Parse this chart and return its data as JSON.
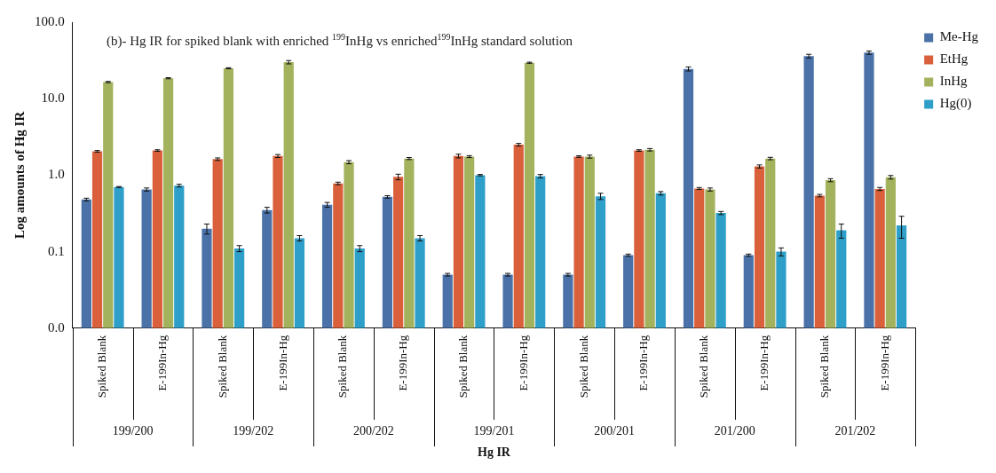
{
  "chart_data": {
    "type": "bar",
    "title": "(b)- Hg IR for spiked blank with enriched $^{199}$InHg vs enriched$^{199}$InHg standard solution",
    "xlabel": "Hg IR",
    "ylabel": "Log amounts of Hg IR",
    "categories": [
      "Spiked Blank",
      "E-199In-Hg",
      "Spiked Blank",
      "E-199In-Hg",
      "Spiked Blank",
      "E-199In-Hg",
      "Spiked Blank",
      "E-199In-Hg",
      "Spiked Blank",
      "E-199In-Hg",
      "Spiked Blank",
      "E-199In-Hg",
      "Spiked Blank",
      "E-199In-Hg"
    ],
    "annotations": [
      "199/200",
      "199/202",
      "200/202",
      "199/201",
      "200/201",
      "201/200",
      "201/202"
    ],
    "series": [
      {
        "name": "Me-Hg",
        "color": "#4a72a8",
        "values": [
          0.48,
          0.65,
          0.2,
          0.35,
          0.41,
          0.52,
          0.05,
          0.05,
          0.05,
          0.09,
          24.5,
          0.09,
          36,
          40
        ],
        "errors": [
          0.02,
          0.03,
          0.03,
          0.03,
          0.03,
          0.02,
          0.002,
          0.002,
          0.002,
          0.003,
          1.5,
          0.003,
          2,
          2
        ]
      },
      {
        "name": "EtHg",
        "color": "#d9603b",
        "values": [
          2.05,
          2.1,
          1.62,
          1.78,
          0.78,
          0.95,
          1.78,
          2.5,
          1.75,
          2.1,
          0.67,
          1.3,
          0.54,
          0.66
        ],
        "errors": [
          0.05,
          0.05,
          0.06,
          0.08,
          0.03,
          0.08,
          0.1,
          0.1,
          0.04,
          0.05,
          0.02,
          0.06,
          0.02,
          0.03
        ]
      },
      {
        "name": "InHg",
        "color": "#a3b25c",
        "values": [
          16.5,
          18.5,
          25,
          30,
          1.48,
          1.65,
          1.75,
          29.5,
          1.75,
          2.15,
          0.65,
          1.65,
          0.86,
          0.94
        ],
        "errors": [
          0.3,
          0.3,
          0.4,
          1.5,
          0.07,
          0.05,
          0.05,
          0.5,
          0.08,
          0.08,
          0.03,
          0.06,
          0.04,
          0.05
        ]
      },
      {
        "name": "Hg(0)",
        "color": "#2e9fc9",
        "values": [
          0.7,
          0.73,
          0.11,
          0.15,
          0.11,
          0.15,
          1.0,
          0.97,
          0.53,
          0.58,
          0.32,
          0.1,
          0.19,
          0.22
        ],
        "errors": [
          0.01,
          0.03,
          0.01,
          0.012,
          0.01,
          0.012,
          0.02,
          0.05,
          0.05,
          0.03,
          0.015,
          0.012,
          0.04,
          0.07
        ]
      }
    ],
    "log": true,
    "ylim": [
      0.01,
      100
    ],
    "yticks": [
      {
        "value": 0.01,
        "label": "0.0"
      },
      {
        "value": 0.1,
        "label": "0.1"
      },
      {
        "value": 1,
        "label": "1.0"
      },
      {
        "value": 10,
        "label": "10.0"
      },
      {
        "value": 100,
        "label": "100.0"
      }
    ],
    "grid": false,
    "legend": "top right"
  }
}
